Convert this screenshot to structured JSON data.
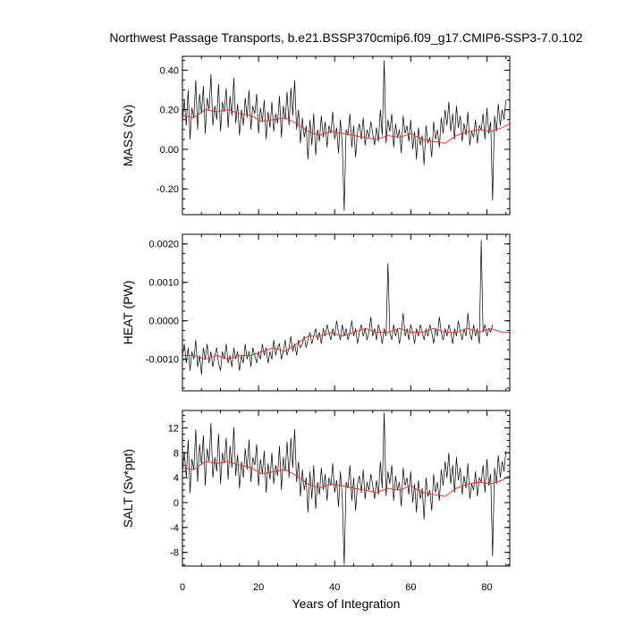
{
  "title": "Northwest Passage Transports, b.e21.BSSP370cmip6.f09_g17.CMIP6-SSP3-7.0.102",
  "colors": {
    "raw": "#000000",
    "smoothed": "#e8342a"
  },
  "chart_data": [
    {
      "type": "line",
      "panel": "MASS",
      "ylabel": "MASS (Sv)",
      "xlabel": "",
      "xlim": [
        0,
        86
      ],
      "ylim": [
        -0.33,
        0.47
      ],
      "yticks": [
        -0.2,
        0.0,
        0.2,
        0.4
      ],
      "ytick_labels": [
        "-0.20",
        "0.00",
        "0.20",
        "0.40"
      ],
      "xticks": [
        0,
        20,
        40,
        60,
        80
      ],
      "xtick_labels": [
        "",
        "",
        "",
        "",
        ""
      ],
      "series": [
        {
          "role": "monthly",
          "x_start": 0,
          "x_step": 0.5,
          "values": [
            0.14,
            0.25,
            0.12,
            0.3,
            0.05,
            0.21,
            0.16,
            0.35,
            0.1,
            0.28,
            0.18,
            0.32,
            0.08,
            0.26,
            0.2,
            0.38,
            0.12,
            0.22,
            0.15,
            0.33,
            0.09,
            0.24,
            0.19,
            0.31,
            0.11,
            0.27,
            0.17,
            0.36,
            0.13,
            0.23,
            0.07,
            0.2,
            0.12,
            0.26,
            0.16,
            0.3,
            0.1,
            0.22,
            0.18,
            0.28,
            0.08,
            0.21,
            0.14,
            0.25,
            0.05,
            0.19,
            0.11,
            0.24,
            0.09,
            0.18,
            0.13,
            0.27,
            0.06,
            0.22,
            0.15,
            0.29,
            0.12,
            0.31,
            0.17,
            0.35,
            0.1,
            0.2,
            0.03,
            0.16,
            0.06,
            0.12,
            -0.05,
            0.15,
            0.02,
            0.18,
            -0.03,
            0.1,
            0.04,
            0.17,
            0.06,
            0.14,
            0.01,
            0.12,
            0.08,
            0.19,
            0.05,
            0.11,
            -0.02,
            0.15,
            0.03,
            -0.31,
            0.1,
            0.07,
            0.18,
            0.01,
            0.12,
            -0.04,
            0.09,
            0.13,
            0.05,
            0.16,
            0.02,
            0.1,
            0.06,
            0.14,
            0.08,
            0.02,
            0.11,
            0.04,
            0.2,
            0.07,
            0.45,
            0.03,
            0.15,
            0.09,
            0.18,
            0.01,
            0.13,
            0.06,
            0.1,
            -0.02,
            0.17,
            0.08,
            0.12,
            0.04,
            0.15,
            0.0,
            0.09,
            -0.05,
            0.11,
            0.02,
            0.07,
            -0.08,
            0.12,
            0.03,
            0.06,
            -0.04,
            0.14,
            0.05,
            0.1,
            0.01,
            0.16,
            0.08,
            0.2,
            0.12,
            0.24,
            0.09,
            0.18,
            0.05,
            0.22,
            0.11,
            0.17,
            0.04,
            0.13,
            0.07,
            0.19,
            0.02,
            0.09,
            0.06,
            0.15,
            0.03,
            0.12,
            0.1,
            0.18,
            0.05,
            0.21,
            0.08,
            0.14,
            -0.26,
            0.17,
            0.09,
            0.23,
            0.12,
            0.2,
            0.15,
            0.25
          ]
        },
        {
          "role": "smoothed",
          "x": [
            0,
            3,
            6,
            9,
            12,
            15,
            18,
            21,
            24,
            27,
            30,
            33,
            36,
            39,
            42,
            45,
            48,
            51,
            54,
            57,
            60,
            63,
            66,
            69,
            72,
            75,
            78,
            81,
            84,
            86
          ],
          "values": [
            0.17,
            0.16,
            0.2,
            0.19,
            0.2,
            0.18,
            0.17,
            0.14,
            0.15,
            0.16,
            0.13,
            0.09,
            0.07,
            0.09,
            0.08,
            0.07,
            0.06,
            0.05,
            0.07,
            0.06,
            0.08,
            0.05,
            0.04,
            0.03,
            0.07,
            0.09,
            0.1,
            0.09,
            0.11,
            0.13
          ]
        }
      ]
    },
    {
      "type": "line",
      "panel": "HEAT",
      "ylabel": "HEAT (PW)",
      "xlabel": "",
      "xlim": [
        0,
        86
      ],
      "ylim": [
        -0.00182,
        0.00225
      ],
      "yticks": [
        -0.001,
        0.0,
        0.001,
        0.002
      ],
      "ytick_labels": [
        "-0.0010",
        "0.0000",
        "0.0010",
        "0.0020"
      ],
      "xticks": [
        0,
        20,
        40,
        60,
        80
      ],
      "xtick_labels": [
        "",
        "",
        "",
        "",
        ""
      ],
      "series": [
        {
          "role": "monthly",
          "x_start": 0,
          "x_step": 0.5,
          "values": [
            -0.0009,
            -0.0006,
            -0.0011,
            -0.0007,
            -0.0013,
            -0.0008,
            -0.001,
            -0.0005,
            -0.0012,
            -0.0009,
            -0.0014,
            -0.0007,
            -0.001,
            -0.0006,
            -0.0011,
            -0.0008,
            -0.0012,
            -0.0009,
            -0.0007,
            -0.0011,
            -0.0013,
            -0.0008,
            -0.001,
            -0.0006,
            -0.0011,
            -0.0009,
            -0.0012,
            -0.0007,
            -0.001,
            -0.0008,
            -0.0013,
            -0.0009,
            -0.0011,
            -0.0006,
            -0.001,
            -0.0008,
            -0.0012,
            -0.0007,
            -0.0009,
            -0.0011,
            -0.0008,
            -0.001,
            -0.0006,
            -0.0009,
            -0.0007,
            -0.0011,
            -0.0008,
            -0.001,
            -0.0005,
            -0.0009,
            -0.0007,
            -0.0006,
            -0.001,
            -0.0008,
            -0.0005,
            -0.0009,
            -0.0007,
            -0.0004,
            -0.0008,
            -0.0006,
            -0.0009,
            -0.0005,
            -0.0007,
            -0.0006,
            -0.0004,
            -0.0007,
            -0.0005,
            -0.0003,
            -0.0006,
            -0.0004,
            -0.0002,
            -0.0005,
            -0.0003,
            -0.0006,
            -0.0002,
            -0.0004,
            -0.0001,
            -0.0003,
            -0.0005,
            -0.0002,
            -0.0004,
            0.0,
            -0.0003,
            -0.0005,
            -0.0001,
            -0.0004,
            -0.0002,
            -0.0005,
            -0.0003,
            0.0,
            -0.0004,
            -0.0002,
            -0.0006,
            -0.0003,
            -0.0001,
            -0.0004,
            -0.0002,
            -0.0005,
            -0.0003,
            0.0001,
            -0.0004,
            -0.0002,
            -0.0005,
            -0.0001,
            -0.0003,
            -0.0006,
            -0.0002,
            -0.0004,
            0.0015,
            -0.0003,
            -0.0005,
            -0.0001,
            -0.0004,
            -0.0002,
            -0.0006,
            -0.0003,
            0.0002,
            -0.0004,
            -0.0002,
            -0.0005,
            -0.0001,
            -0.0003,
            -0.0006,
            -0.0002,
            -0.0004,
            -0.0001,
            -0.0003,
            -0.0005,
            -0.0002,
            -0.0004,
            -0.0001,
            -0.0003,
            -0.0006,
            -0.0002,
            -0.0004,
            0.0001,
            -0.0003,
            -0.0005,
            -0.0002,
            -0.0004,
            -0.0001,
            -0.0003,
            -0.0006,
            -0.0002,
            -0.0004,
            0.0,
            -0.0003,
            -0.0005,
            -0.0002,
            -0.0004,
            0.0002,
            -0.0003,
            -0.0005,
            -0.0001,
            -0.0004,
            -0.0002,
            -0.0006,
            0.0021,
            -0.0003,
            -0.0001,
            -0.0004,
            -0.0002,
            -0.0003,
            -0.0001
          ]
        },
        {
          "role": "smoothed",
          "x": [
            0,
            3,
            6,
            9,
            12,
            15,
            18,
            21,
            24,
            27,
            30,
            33,
            36,
            39,
            42,
            45,
            48,
            51,
            54,
            57,
            60,
            63,
            66,
            69,
            72,
            75,
            78,
            81,
            84,
            86
          ],
          "values": [
            -0.0009,
            -0.0009,
            -0.001,
            -0.0009,
            -0.001,
            -0.0009,
            -0.0009,
            -0.0008,
            -0.0007,
            -0.0008,
            -0.0006,
            -0.0004,
            -0.0004,
            -0.0003,
            -0.0004,
            -0.0003,
            -0.0002,
            -0.0003,
            -0.0003,
            -0.0002,
            -0.0003,
            -0.0003,
            -0.0002,
            -0.0003,
            -0.0003,
            -0.0002,
            -0.0003,
            -0.0002,
            -0.0003,
            -0.0003
          ]
        }
      ]
    },
    {
      "type": "line",
      "panel": "SALT",
      "ylabel": "SALT (Sv*ppt)",
      "xlabel": "Years of Integration",
      "xlim": [
        0,
        86
      ],
      "ylim": [
        -10.2,
        14.8
      ],
      "yticks": [
        -8,
        -4,
        0,
        4,
        8,
        12
      ],
      "ytick_labels": [
        "-8",
        "-4",
        "0",
        "4",
        "8",
        "12"
      ],
      "xticks": [
        0,
        20,
        40,
        60,
        80
      ],
      "xtick_labels": [
        "0",
        "20",
        "40",
        "60",
        "80"
      ],
      "series": [
        {
          "role": "monthly",
          "x_start": 0,
          "x_step": 0.5,
          "values": [
            4.8,
            8.2,
            4.0,
            10.1,
            1.5,
            7.0,
            5.3,
            11.8,
            3.3,
            9.4,
            6.0,
            10.8,
            2.7,
            8.7,
            6.6,
            12.8,
            4.0,
            7.3,
            5.0,
            11.1,
            3.0,
            8.0,
            6.3,
            10.4,
            3.7,
            9.1,
            5.6,
            12.1,
            4.3,
            7.7,
            2.3,
            6.6,
            4.0,
            8.7,
            5.3,
            10.1,
            3.3,
            7.3,
            6.0,
            9.4,
            2.7,
            7.0,
            4.6,
            8.3,
            1.6,
            6.3,
            3.7,
            8.0,
            3.0,
            6.0,
            4.3,
            9.1,
            2.0,
            7.3,
            5.0,
            9.8,
            4.0,
            10.4,
            5.6,
            11.8,
            3.3,
            6.6,
            1.0,
            5.3,
            2.0,
            4.0,
            -1.6,
            5.0,
            0.6,
            6.0,
            -1.0,
            3.3,
            1.3,
            5.6,
            2.0,
            4.6,
            0.3,
            4.0,
            2.7,
            6.3,
            1.6,
            3.6,
            -0.7,
            5.0,
            1.0,
            -10.0,
            3.3,
            2.3,
            6.0,
            0.3,
            4.0,
            -1.3,
            3.0,
            4.3,
            1.6,
            5.3,
            0.6,
            3.3,
            2.0,
            4.6,
            2.7,
            0.6,
            3.6,
            1.3,
            6.6,
            2.3,
            14.5,
            1.0,
            5.0,
            3.0,
            6.0,
            0.3,
            4.3,
            2.0,
            3.3,
            -0.6,
            5.6,
            2.7,
            4.0,
            1.3,
            5.0,
            0.0,
            3.0,
            -1.6,
            3.6,
            0.6,
            2.3,
            -2.7,
            4.0,
            1.0,
            2.0,
            -1.3,
            4.6,
            1.6,
            3.3,
            0.3,
            5.3,
            2.7,
            6.6,
            4.0,
            8.0,
            3.0,
            6.0,
            1.6,
            7.3,
            3.6,
            5.6,
            1.3,
            4.3,
            2.3,
            6.3,
            0.6,
            3.0,
            2.0,
            5.0,
            1.0,
            4.0,
            3.3,
            6.0,
            1.6,
            7.0,
            2.7,
            4.6,
            -8.6,
            5.6,
            3.0,
            7.6,
            4.0,
            6.6,
            5.0,
            8.3
          ]
        },
        {
          "role": "smoothed",
          "x": [
            0,
            3,
            6,
            9,
            12,
            15,
            18,
            21,
            24,
            27,
            30,
            33,
            36,
            39,
            42,
            45,
            48,
            51,
            54,
            57,
            60,
            63,
            66,
            69,
            72,
            75,
            78,
            81,
            84,
            86
          ],
          "values": [
            5.6,
            5.3,
            6.6,
            6.3,
            6.6,
            6.0,
            5.6,
            4.6,
            5.0,
            5.3,
            4.3,
            3.0,
            2.3,
            3.0,
            2.7,
            2.3,
            2.0,
            1.6,
            2.3,
            2.0,
            2.7,
            1.6,
            1.3,
            1.0,
            2.3,
            3.0,
            3.3,
            3.0,
            3.6,
            4.3
          ]
        }
      ]
    }
  ]
}
